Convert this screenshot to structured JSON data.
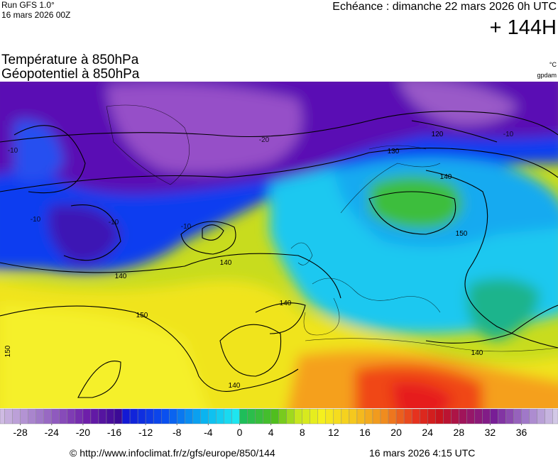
{
  "header": {
    "run": "Run GFS 1.0°",
    "run_date": "16 mars 2026 00Z",
    "forecast": "Echéance : dimanche 22 mars 2026 0h UTC",
    "lead": "+ 144H",
    "title_1": "Température à 850hPa",
    "title_2": "Géopotentiel à 850hPa",
    "unit_temp": "°C",
    "unit_geo": "gpdam"
  },
  "map": {
    "contour_labels": [
      "140",
      "150",
      "150",
      "140",
      "140",
      "140",
      "120",
      "130",
      "140",
      "150",
      "140",
      "-10",
      "-10",
      "-10",
      "-10",
      "-20",
      "-10"
    ]
  },
  "colorbar": {
    "ticks": [
      -28,
      -24,
      -20,
      -16,
      -12,
      -8,
      -4,
      0,
      4,
      8,
      12,
      16,
      20,
      24,
      28,
      32,
      36
    ]
  },
  "footer": {
    "source": "© http://www.infoclimat.fr/z/gfs/europe/850/144",
    "generated": "16 mars 2026  4:15 UTC"
  }
}
